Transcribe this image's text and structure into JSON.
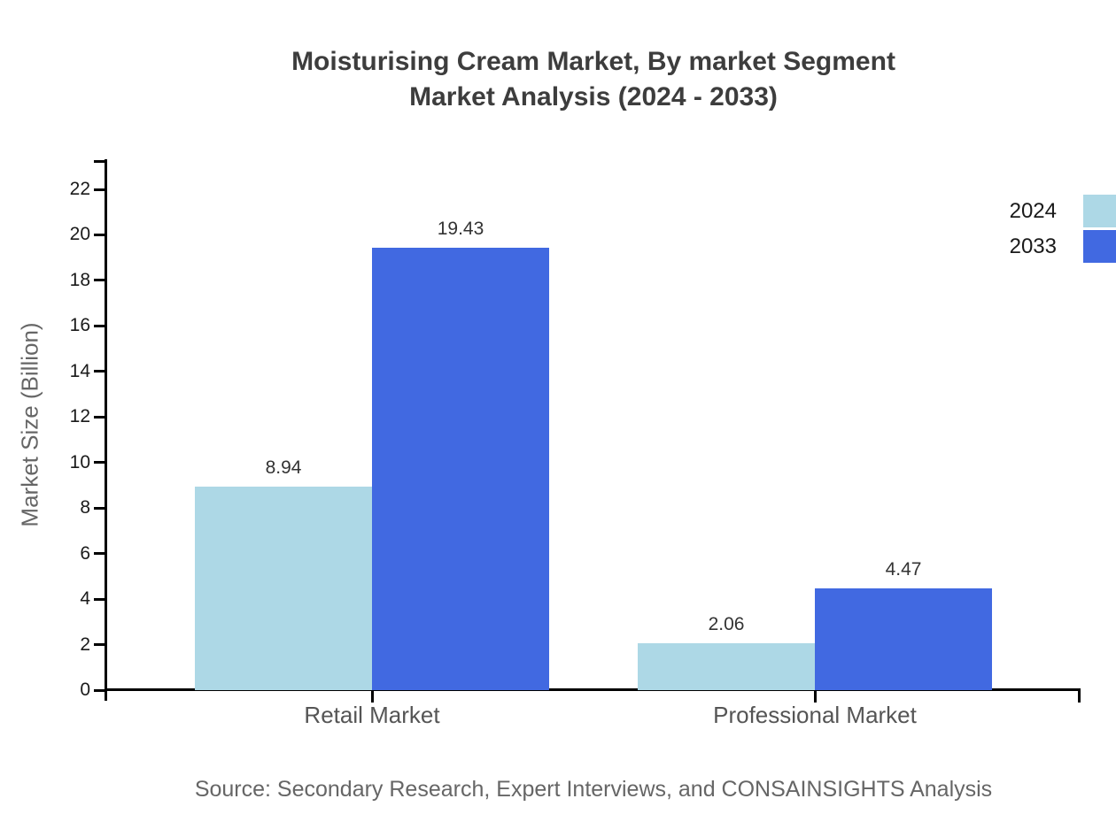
{
  "chart_data": {
    "type": "bar",
    "title": "Moisturising Cream Market, By market Segment Market Analysis (2024 - 2033)",
    "title_line1": "Moisturising Cream Market, By market Segment",
    "title_line2": "Market Analysis (2024 - 2033)",
    "ylabel": "Market Size (Billion)",
    "categories": [
      "Retail Market",
      "Professional Market"
    ],
    "series": [
      {
        "name": "2024",
        "color": "#ADD8E6",
        "values": [
          8.94,
          2.06
        ]
      },
      {
        "name": "2033",
        "color": "#4169E1",
        "values": [
          19.43,
          4.47
        ]
      }
    ],
    "yticks": [
      0,
      2,
      4,
      6,
      8,
      10,
      12,
      14,
      16,
      18,
      20,
      22
    ],
    "ylim": [
      0,
      23.3
    ],
    "grid": false,
    "legend_position": "top-right",
    "value_label_format": "2-decimals",
    "source": "Source: Secondary Research, Expert Interviews, and CONSAINSIGHTS Analysis",
    "colors": {
      "axis": "#000000",
      "title_text": "#3d3d3d",
      "tick_text": "#1a1a1a",
      "category_text": "#555555",
      "value_text": "#333333",
      "source_text": "#666666"
    }
  }
}
